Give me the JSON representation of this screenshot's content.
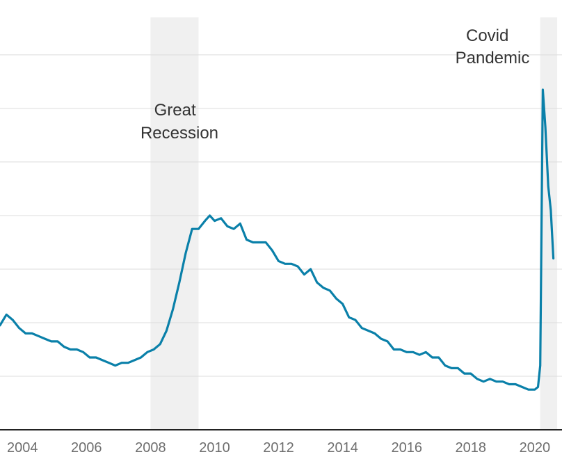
{
  "chart_data": {
    "type": "line",
    "title": "",
    "xlabel": "",
    "ylabel": "",
    "x_range": [
      2003.3,
      2020.85
    ],
    "y_range": [
      2,
      17.4
    ],
    "y_gridlines": [
      4,
      6,
      8,
      10,
      12,
      14,
      16
    ],
    "grid": true,
    "x_ticks": [
      {
        "value": 2004,
        "label": "2004"
      },
      {
        "value": 2006,
        "label": "2006"
      },
      {
        "value": 2008,
        "label": "2008"
      },
      {
        "value": 2010,
        "label": "2010"
      },
      {
        "value": 2012,
        "label": "2012"
      },
      {
        "value": 2014,
        "label": "2014"
      },
      {
        "value": 2016,
        "label": "2016"
      },
      {
        "value": 2018,
        "label": "2018"
      },
      {
        "value": 2020,
        "label": "2020"
      }
    ],
    "shaded_periods": [
      {
        "name": "Great Recession",
        "start": 2008.0,
        "end": 2009.5,
        "color": "#f0f0f0"
      },
      {
        "name": "Covid Pandemic",
        "start": 2020.17,
        "end": 2020.7,
        "color": "#f0f0f0"
      }
    ],
    "annotations": [
      {
        "lines": [
          "Great",
          "Recession"
        ]
      },
      {
        "lines": [
          "Covid",
          "Pandemic"
        ]
      }
    ],
    "series": [
      {
        "color": "#0a80a9",
        "points": [
          [
            2003.3,
            5.9
          ],
          [
            2003.5,
            6.3
          ],
          [
            2003.7,
            6.1
          ],
          [
            2003.9,
            5.8
          ],
          [
            2004.1,
            5.6
          ],
          [
            2004.3,
            5.6
          ],
          [
            2004.5,
            5.5
          ],
          [
            2004.7,
            5.4
          ],
          [
            2004.9,
            5.3
          ],
          [
            2005.1,
            5.3
          ],
          [
            2005.3,
            5.1
          ],
          [
            2005.5,
            5.0
          ],
          [
            2005.7,
            5.0
          ],
          [
            2005.9,
            4.9
          ],
          [
            2006.1,
            4.7
          ],
          [
            2006.3,
            4.7
          ],
          [
            2006.5,
            4.6
          ],
          [
            2006.7,
            4.5
          ],
          [
            2006.9,
            4.4
          ],
          [
            2007.1,
            4.5
          ],
          [
            2007.3,
            4.5
          ],
          [
            2007.5,
            4.6
          ],
          [
            2007.7,
            4.7
          ],
          [
            2007.9,
            4.9
          ],
          [
            2008.1,
            5.0
          ],
          [
            2008.3,
            5.2
          ],
          [
            2008.5,
            5.7
          ],
          [
            2008.7,
            6.5
          ],
          [
            2008.9,
            7.5
          ],
          [
            2009.1,
            8.6
          ],
          [
            2009.3,
            9.5
          ],
          [
            2009.5,
            9.5
          ],
          [
            2009.7,
            9.8
          ],
          [
            2009.85,
            10.0
          ],
          [
            2010.0,
            9.8
          ],
          [
            2010.2,
            9.9
          ],
          [
            2010.4,
            9.6
          ],
          [
            2010.6,
            9.5
          ],
          [
            2010.8,
            9.7
          ],
          [
            2011.0,
            9.1
          ],
          [
            2011.2,
            9.0
          ],
          [
            2011.4,
            9.0
          ],
          [
            2011.6,
            9.0
          ],
          [
            2011.8,
            8.7
          ],
          [
            2012.0,
            8.3
          ],
          [
            2012.2,
            8.2
          ],
          [
            2012.4,
            8.2
          ],
          [
            2012.6,
            8.1
          ],
          [
            2012.8,
            7.8
          ],
          [
            2013.0,
            8.0
          ],
          [
            2013.2,
            7.5
          ],
          [
            2013.4,
            7.3
          ],
          [
            2013.6,
            7.2
          ],
          [
            2013.8,
            6.9
          ],
          [
            2014.0,
            6.7
          ],
          [
            2014.2,
            6.2
          ],
          [
            2014.4,
            6.1
          ],
          [
            2014.6,
            5.8
          ],
          [
            2014.8,
            5.7
          ],
          [
            2015.0,
            5.6
          ],
          [
            2015.2,
            5.4
          ],
          [
            2015.4,
            5.3
          ],
          [
            2015.6,
            5.0
          ],
          [
            2015.8,
            5.0
          ],
          [
            2016.0,
            4.9
          ],
          [
            2016.2,
            4.9
          ],
          [
            2016.4,
            4.8
          ],
          [
            2016.6,
            4.9
          ],
          [
            2016.8,
            4.7
          ],
          [
            2017.0,
            4.7
          ],
          [
            2017.2,
            4.4
          ],
          [
            2017.4,
            4.3
          ],
          [
            2017.6,
            4.3
          ],
          [
            2017.8,
            4.1
          ],
          [
            2018.0,
            4.1
          ],
          [
            2018.2,
            3.9
          ],
          [
            2018.4,
            3.8
          ],
          [
            2018.6,
            3.9
          ],
          [
            2018.8,
            3.8
          ],
          [
            2019.0,
            3.8
          ],
          [
            2019.2,
            3.7
          ],
          [
            2019.4,
            3.7
          ],
          [
            2019.6,
            3.6
          ],
          [
            2019.8,
            3.5
          ],
          [
            2020.0,
            3.5
          ],
          [
            2020.1,
            3.6
          ],
          [
            2020.17,
            4.4
          ],
          [
            2020.25,
            14.7
          ],
          [
            2020.33,
            13.3
          ],
          [
            2020.42,
            11.1
          ],
          [
            2020.5,
            10.2
          ],
          [
            2020.58,
            8.4
          ]
        ]
      }
    ]
  }
}
